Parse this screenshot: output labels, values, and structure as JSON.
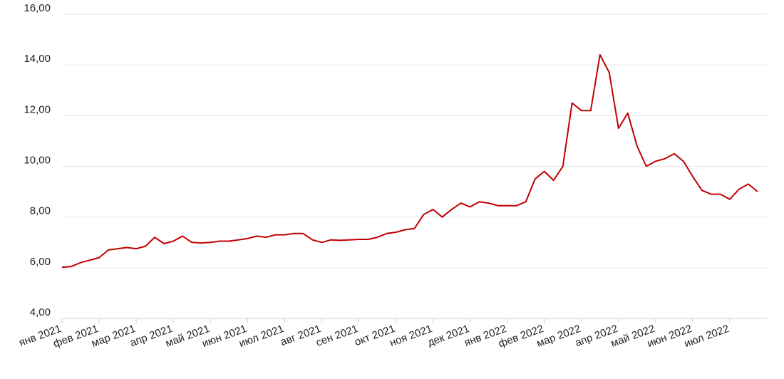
{
  "chart_data": {
    "type": "line",
    "categories": [
      "янв 2021",
      null,
      null,
      null,
      "фев 2021",
      null,
      null,
      null,
      "мар 2021",
      null,
      null,
      null,
      "апр 2021",
      null,
      null,
      null,
      "май 2021",
      null,
      null,
      null,
      "июн 2021",
      null,
      null,
      null,
      "июл 2021",
      null,
      null,
      null,
      "авг 2021",
      null,
      null,
      null,
      "сен 2021",
      null,
      null,
      null,
      "окт 2021",
      null,
      null,
      null,
      "ноя 2021",
      null,
      null,
      null,
      "дек 2021",
      null,
      null,
      null,
      "янв 2022",
      null,
      null,
      null,
      "фев 2022",
      null,
      null,
      null,
      "мар 2022",
      null,
      null,
      null,
      "апр 2022",
      null,
      null,
      null,
      "май 2022",
      null,
      null,
      null,
      "июн 2022",
      null,
      null,
      null,
      "июл 2022",
      null,
      null,
      null
    ],
    "series": [
      {
        "color": "#c00000",
        "values": [
          6.02,
          6.05,
          6.2,
          6.3,
          6.4,
          6.7,
          6.75,
          6.8,
          6.75,
          6.85,
          7.2,
          6.95,
          7.05,
          7.25,
          7.0,
          6.98,
          7.0,
          7.05,
          7.05,
          7.1,
          7.15,
          7.25,
          7.2,
          7.3,
          7.3,
          7.35,
          7.35,
          7.1,
          7.0,
          7.1,
          7.08,
          7.1,
          7.12,
          7.12,
          7.2,
          7.35,
          7.4,
          7.5,
          7.55,
          8.1,
          8.3,
          8.0,
          8.3,
          8.55,
          8.4,
          8.6,
          8.55,
          8.45,
          8.45,
          8.45,
          8.6,
          9.5,
          9.8,
          9.45,
          10.0,
          12.5,
          12.2,
          12.2,
          14.4,
          13.7,
          11.5,
          12.1,
          10.8,
          10.0,
          10.2,
          10.3,
          10.5,
          10.2,
          9.6,
          9.05,
          8.9,
          8.9,
          8.7,
          9.1,
          9.3,
          9.0
        ]
      }
    ],
    "ylim": [
      4,
      16
    ],
    "yticks": [
      {
        "value": 4,
        "label": "4,00"
      },
      {
        "value": 6,
        "label": "6,00"
      },
      {
        "value": 8,
        "label": "8,00"
      },
      {
        "value": 10,
        "label": "10,00"
      },
      {
        "value": 12,
        "label": "12,00"
      },
      {
        "value": 14,
        "label": "14,00"
      },
      {
        "value": 16,
        "label": "16,00"
      }
    ],
    "grid": true
  }
}
